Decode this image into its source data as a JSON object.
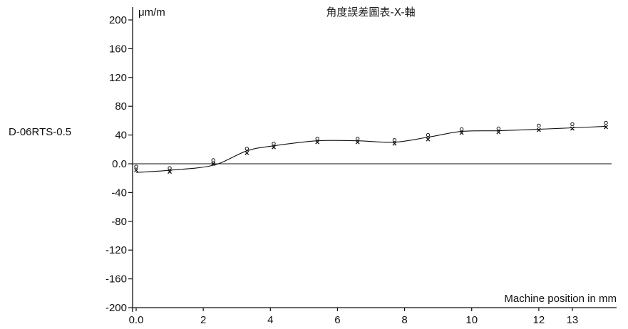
{
  "chart_data": {
    "type": "scatter",
    "title": "角度誤差圖表-X-軸",
    "side_label": "D-06RTS-0.5",
    "ylabel": "μm/m",
    "xlabel": "Machine position in mm",
    "xlim": [
      0,
      14
    ],
    "ylim": [
      -200,
      200
    ],
    "x_ticks": [
      {
        "value": 0,
        "label": "0.0"
      },
      {
        "value": 2,
        "label": "2"
      },
      {
        "value": 4,
        "label": "4"
      },
      {
        "value": 6,
        "label": "6"
      },
      {
        "value": 8,
        "label": "8"
      },
      {
        "value": 10,
        "label": "10"
      },
      {
        "value": 12,
        "label": "12"
      },
      {
        "value": 13,
        "label": "13"
      }
    ],
    "y_ticks": [
      {
        "value": 200,
        "label": "200"
      },
      {
        "value": 160,
        "label": "160"
      },
      {
        "value": 120,
        "label": "120"
      },
      {
        "value": 80,
        "label": "80"
      },
      {
        "value": 40,
        "label": "40"
      },
      {
        "value": 0,
        "label": "0.0"
      },
      {
        "value": -40,
        "label": "-40"
      },
      {
        "value": -80,
        "label": "-80"
      },
      {
        "value": -120,
        "label": "-120"
      },
      {
        "value": -160,
        "label": "-160"
      },
      {
        "value": -200,
        "label": "-200"
      }
    ],
    "zero_line": true,
    "grid": false,
    "series": [
      {
        "marker": "circle",
        "x": [
          0.0,
          1.0,
          2.3,
          3.3,
          4.1,
          5.4,
          6.6,
          7.7,
          8.7,
          9.7,
          10.8,
          12.0,
          13.0,
          14.0
        ],
        "y": [
          -4,
          -6,
          5,
          21,
          28,
          35,
          35,
          33,
          40,
          48,
          49,
          53,
          55,
          57
        ]
      },
      {
        "marker": "cross",
        "x": [
          0.0,
          1.0,
          2.3,
          3.3,
          4.1,
          5.4,
          6.6,
          7.7,
          8.7,
          9.7,
          10.8,
          12.0,
          13.0,
          14.0
        ],
        "y": [
          -9,
          -11,
          0,
          15,
          23,
          30,
          30,
          28,
          34,
          43,
          44,
          47,
          49,
          51
        ]
      },
      {
        "marker": "line",
        "x": [
          0.0,
          1.0,
          2.3,
          3.3,
          4.1,
          5.4,
          6.6,
          7.7,
          8.7,
          9.7,
          10.8,
          12.0,
          13.0,
          14.0
        ],
        "y": [
          -12,
          -9,
          -2,
          18,
          25,
          32,
          32,
          30,
          37,
          45,
          46,
          48,
          50,
          52
        ]
      }
    ]
  }
}
